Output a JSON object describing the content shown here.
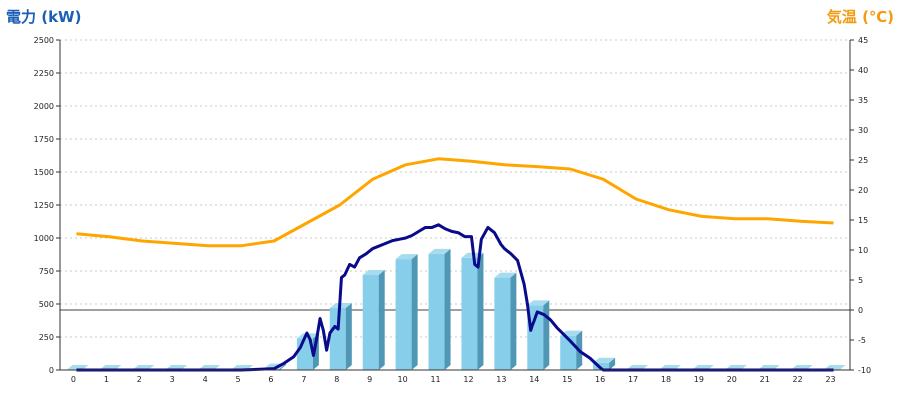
{
  "chart_data": {
    "type": "bar",
    "left_axis_label": "電力 (kW)",
    "right_axis_label": "気温 (℃)",
    "categories": [
      "0",
      "1",
      "2",
      "3",
      "4",
      "5",
      "6",
      "7",
      "8",
      "9",
      "10",
      "11",
      "12",
      "13",
      "14",
      "15",
      "16",
      "17",
      "18",
      "19",
      "20",
      "21",
      "22",
      "23"
    ],
    "ylim_left": [
      0,
      2500
    ],
    "yticks_left": [
      0,
      250,
      500,
      750,
      1000,
      1250,
      1500,
      1750,
      2000,
      2250,
      2500
    ],
    "ylim_right": [
      -10,
      45
    ],
    "yticks_right": [
      -10,
      -5,
      0,
      5,
      10,
      15,
      20,
      25,
      30,
      35,
      40,
      45
    ],
    "grid": "horizontal dashed",
    "series": [
      {
        "kind": "bar",
        "axis": "left",
        "color": "#87ceeb",
        "values": [
          0,
          0,
          0,
          0,
          0,
          0,
          10,
          240,
          470,
          720,
          840,
          880,
          850,
          700,
          490,
          260,
          55,
          0,
          0,
          0,
          0,
          0,
          0,
          0
        ]
      },
      {
        "kind": "line",
        "axis": "left",
        "color": "#0a0a8c",
        "x": [
          0,
          1,
          2,
          3,
          4,
          5,
          6.0,
          6.3,
          6.6,
          6.8,
          7.0,
          7.1,
          7.2,
          7.3,
          7.4,
          7.5,
          7.6,
          7.7,
          7.85,
          7.95,
          8.05,
          8.15,
          8.3,
          8.45,
          8.6,
          8.8,
          9.0,
          9.3,
          9.6,
          9.8,
          10.0,
          10.2,
          10.4,
          10.6,
          10.8,
          11.0,
          11.2,
          11.4,
          11.6,
          11.8,
          12.0,
          12.1,
          12.2,
          12.3,
          12.5,
          12.7,
          12.9,
          13.0,
          13.2,
          13.4,
          13.6,
          13.7,
          13.8,
          13.85,
          13.9,
          14.0,
          14.2,
          14.4,
          14.6,
          14.8,
          15.0,
          15.3,
          15.6,
          15.9,
          16.0,
          16.3,
          17,
          18,
          19,
          20,
          21,
          22,
          23
        ],
        "y": [
          0,
          0,
          0,
          0,
          0,
          0,
          10,
          50,
          100,
          170,
          280,
          230,
          110,
          240,
          390,
          300,
          150,
          280,
          330,
          310,
          700,
          720,
          800,
          780,
          850,
          880,
          920,
          950,
          980,
          990,
          1000,
          1020,
          1050,
          1080,
          1080,
          1100,
          1070,
          1050,
          1040,
          1010,
          1010,
          800,
          780,
          990,
          1080,
          1040,
          950,
          920,
          880,
          830,
          650,
          500,
          300,
          340,
          370,
          440,
          420,
          380,
          320,
          270,
          220,
          140,
          90,
          20,
          0,
          0,
          0,
          0,
          0,
          0,
          0,
          0,
          0
        ]
      },
      {
        "kind": "line",
        "axis": "right",
        "color": "#ffa500",
        "values": [
          12.7,
          12.2,
          11.5,
          11.1,
          10.7,
          10.7,
          11.5,
          14.5,
          17.5,
          21.8,
          24.2,
          25.2,
          24.8,
          24.2,
          23.9,
          23.5,
          21.8,
          18.5,
          16.7,
          15.6,
          15.2,
          15.2,
          14.8,
          14.5
        ]
      }
    ]
  }
}
